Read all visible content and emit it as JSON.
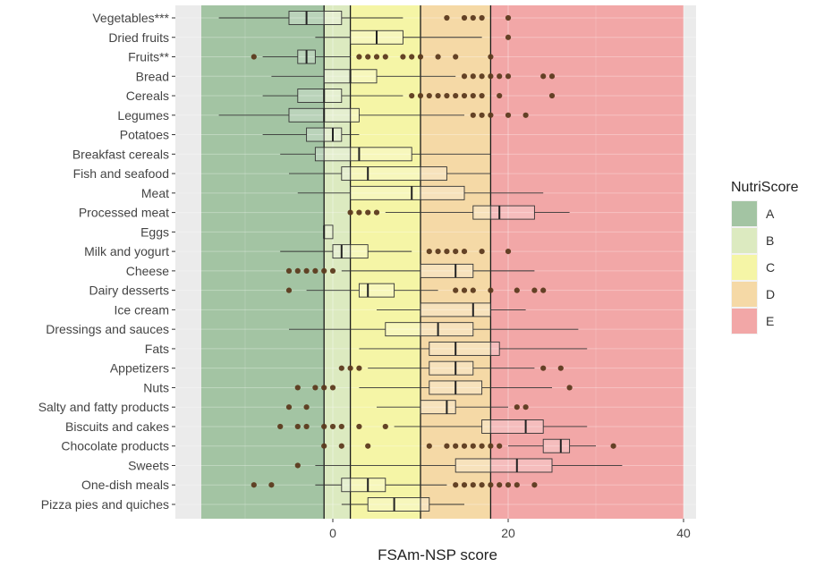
{
  "chart_data": {
    "type": "boxplot",
    "title": "",
    "xlabel": "FSAm-NSP score",
    "ylabel": "",
    "xlim": [
      -15,
      41
    ],
    "x_ticks": [
      0,
      20,
      40
    ],
    "grid": true,
    "legend": {
      "title": "NutriScore",
      "position": "right",
      "entries": [
        {
          "label": "A",
          "color": "#a3c4a3"
        },
        {
          "label": "B",
          "color": "#dceac0"
        },
        {
          "label": "C",
          "color": "#f5f5a6"
        },
        {
          "label": "D",
          "color": "#f5d9a6"
        },
        {
          "label": "E",
          "color": "#f2a7a7"
        }
      ]
    },
    "bands": [
      {
        "label": "A",
        "from": -15,
        "to": -1,
        "color": "#a3c4a3"
      },
      {
        "label": "B",
        "from": -1,
        "to": 2,
        "color": "#dceac0"
      },
      {
        "label": "C",
        "from": 2,
        "to": 10,
        "color": "#f5f5a6"
      },
      {
        "label": "D",
        "from": 10,
        "to": 18,
        "color": "#f5d9a6"
      },
      {
        "label": "E",
        "from": 18,
        "to": 40,
        "color": "#f2a7a7"
      }
    ],
    "threshold_lines": [
      -1,
      2,
      10,
      18
    ],
    "categories": [
      {
        "name": "Vegetables***",
        "wl": -13,
        "q1": -5,
        "med": -3,
        "q3": 1,
        "wh": 8,
        "outliers": [
          13,
          15,
          16,
          17,
          20
        ]
      },
      {
        "name": "Dried fruits",
        "wl": -2,
        "q1": 2,
        "med": 5,
        "q3": 8,
        "wh": 17,
        "outliers": [
          20
        ]
      },
      {
        "name": "Fruits**",
        "wl": -8,
        "q1": -4,
        "med": -3,
        "q3": -2,
        "wh": 2,
        "outliers": [
          -9,
          3,
          4,
          5,
          6,
          8,
          9,
          10,
          12,
          14,
          18
        ]
      },
      {
        "name": "Bread",
        "wl": -7,
        "q1": -1,
        "med": 2,
        "q3": 5,
        "wh": 14,
        "outliers": [
          15,
          16,
          17,
          18,
          19,
          20,
          24,
          25
        ]
      },
      {
        "name": "Cereals",
        "wl": -8,
        "q1": -4,
        "med": -1,
        "q3": 1,
        "wh": 8,
        "outliers": [
          9,
          10,
          11,
          12,
          13,
          14,
          15,
          16,
          17,
          19,
          25
        ]
      },
      {
        "name": "Legumes",
        "wl": -13,
        "q1": -5,
        "med": -1,
        "q3": 3,
        "wh": 15,
        "outliers": [
          16,
          17,
          18,
          20,
          22
        ]
      },
      {
        "name": "Potatoes",
        "wl": -8,
        "q1": -3,
        "med": 0,
        "q3": 1,
        "wh": 3,
        "outliers": []
      },
      {
        "name": "Breakfast cereals",
        "wl": -6,
        "q1": -2,
        "med": 3,
        "q3": 9,
        "wh": 18,
        "outliers": []
      },
      {
        "name": "Fish and seafood",
        "wl": -5,
        "q1": 1,
        "med": 4,
        "q3": 13,
        "wh": 18,
        "outliers": []
      },
      {
        "name": "Meat",
        "wl": -4,
        "q1": 2,
        "med": 9,
        "q3": 15,
        "wh": 24,
        "outliers": []
      },
      {
        "name": "Processed meat",
        "wl": 6,
        "q1": 16,
        "med": 19,
        "q3": 23,
        "wh": 27,
        "outliers": [
          2,
          3,
          4,
          5
        ]
      },
      {
        "name": "Eggs",
        "wl": -1,
        "q1": -1,
        "med": -1,
        "q3": 0,
        "wh": 0,
        "outliers": []
      },
      {
        "name": "Milk and yogurt",
        "wl": -6,
        "q1": 0,
        "med": 1,
        "q3": 4,
        "wh": 9,
        "outliers": [
          11,
          12,
          13,
          14,
          15,
          17,
          20
        ]
      },
      {
        "name": "Cheese",
        "wl": 1,
        "q1": 10,
        "med": 14,
        "q3": 16,
        "wh": 23,
        "outliers": [
          -5,
          -4,
          -3,
          -2,
          -1,
          0
        ]
      },
      {
        "name": "Dairy desserts",
        "wl": -3,
        "q1": 3,
        "med": 4,
        "q3": 7,
        "wh": 12,
        "outliers": [
          -5,
          14,
          15,
          16,
          18,
          21,
          23,
          24
        ]
      },
      {
        "name": "Ice cream",
        "wl": 5,
        "q1": 10,
        "med": 16,
        "q3": 18,
        "wh": 22,
        "outliers": []
      },
      {
        "name": "Dressings and sauces",
        "wl": -5,
        "q1": 6,
        "med": 12,
        "q3": 16,
        "wh": 28,
        "outliers": []
      },
      {
        "name": "Fats",
        "wl": 3,
        "q1": 11,
        "med": 14,
        "q3": 19,
        "wh": 29,
        "outliers": []
      },
      {
        "name": "Appetizers",
        "wl": 4,
        "q1": 11,
        "med": 14,
        "q3": 16,
        "wh": 23,
        "outliers": [
          1,
          2,
          3,
          24,
          26
        ]
      },
      {
        "name": "Nuts",
        "wl": 3,
        "q1": 11,
        "med": 14,
        "q3": 17,
        "wh": 25,
        "outliers": [
          -4,
          -2,
          -1,
          0,
          27
        ]
      },
      {
        "name": "Salty and fatty products",
        "wl": 5,
        "q1": 10,
        "med": 13,
        "q3": 14,
        "wh": 20,
        "outliers": [
          -5,
          -3,
          21,
          22
        ]
      },
      {
        "name": "Biscuits and cakes",
        "wl": 7,
        "q1": 17,
        "med": 22,
        "q3": 24,
        "wh": 29,
        "outliers": [
          -6,
          -4,
          -3,
          -1,
          0,
          1,
          3,
          6
        ]
      },
      {
        "name": "Chocolate products",
        "wl": 20,
        "q1": 24,
        "med": 26,
        "q3": 27,
        "wh": 30,
        "outliers": [
          -1,
          1,
          4,
          11,
          13,
          14,
          15,
          16,
          17,
          18,
          19,
          32
        ]
      },
      {
        "name": "Sweets",
        "wl": -2,
        "q1": 14,
        "med": 21,
        "q3": 25,
        "wh": 33,
        "outliers": [
          -4
        ]
      },
      {
        "name": "One-dish meals",
        "wl": -2,
        "q1": 1,
        "med": 4,
        "q3": 6,
        "wh": 13,
        "outliers": [
          -9,
          -7,
          14,
          15,
          16,
          17,
          18,
          19,
          20,
          21,
          23
        ]
      },
      {
        "name": "Pizza pies and quiches",
        "wl": 1,
        "q1": 4,
        "med": 7,
        "q3": 11,
        "wh": 15,
        "outliers": []
      }
    ]
  }
}
